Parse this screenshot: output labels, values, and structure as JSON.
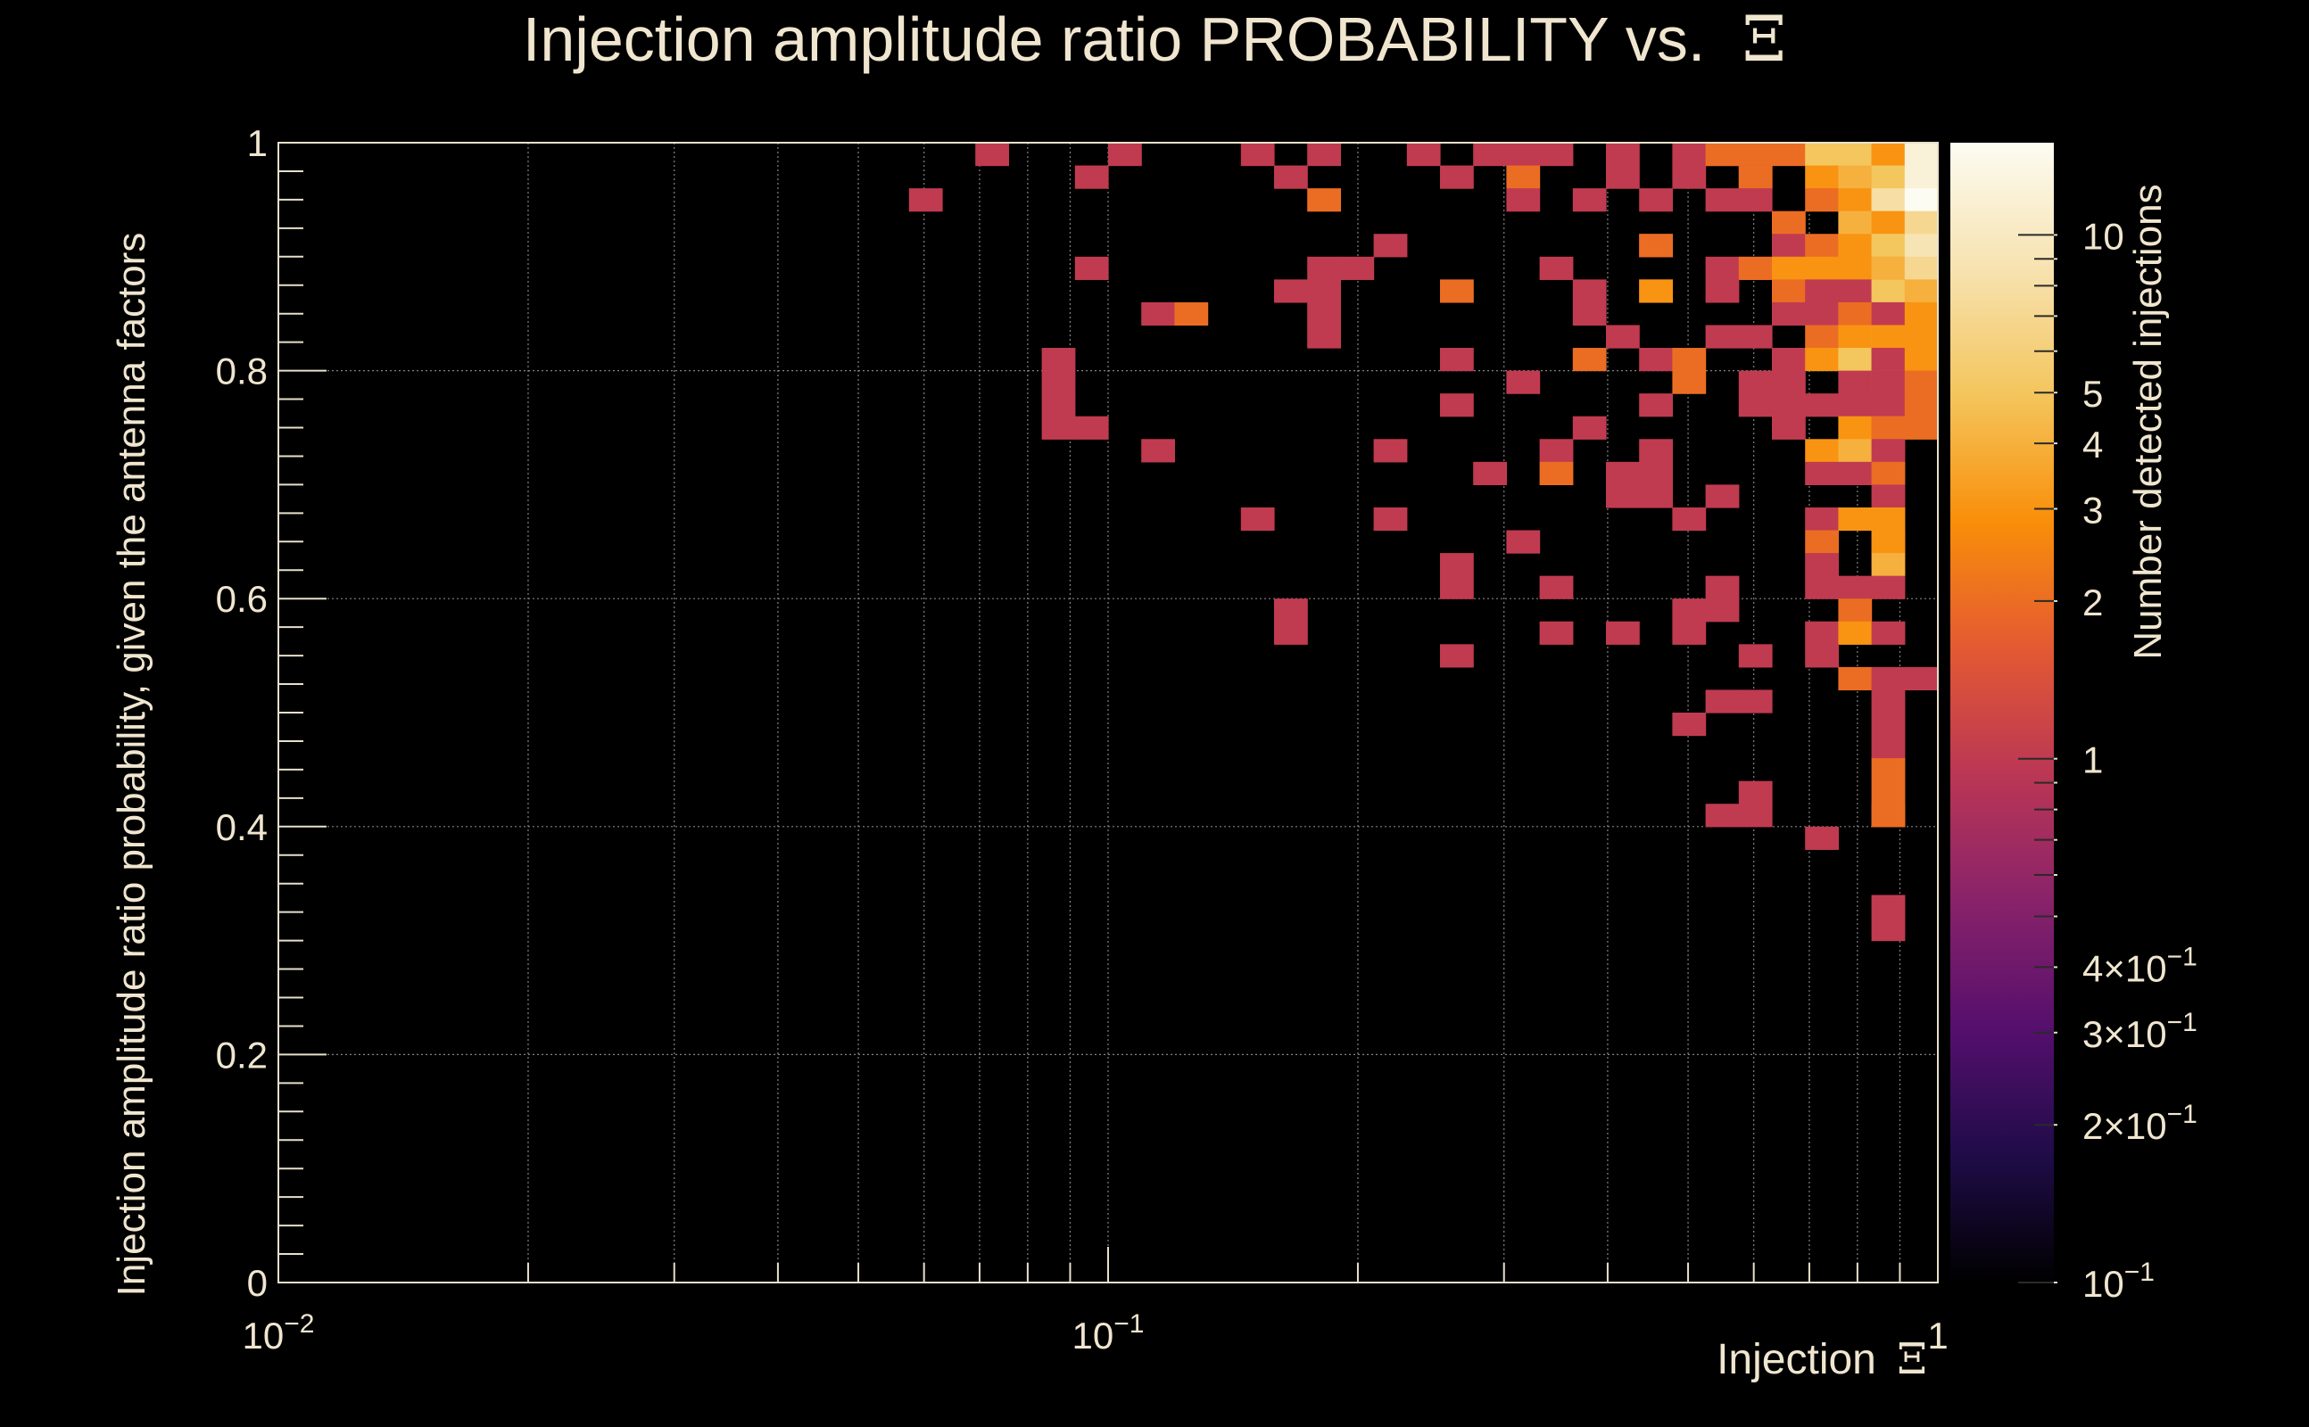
{
  "chart_data": {
    "type": "heatmap",
    "title": "Injection amplitude ratio PROBABILITY vs.",
    "title_symbol": "Ξ",
    "xlabel": "Injection",
    "xlabel_symbol": "Ξ",
    "ylabel": "Injection amplitude ratio probability, given the antenna factors",
    "zlabel": "Number detected injections",
    "x_scale": "log",
    "xlim": [
      0.01,
      1
    ],
    "ylim": [
      0,
      1
    ],
    "z_scale": "log",
    "zlim": [
      0.1,
      15
    ],
    "grid": true,
    "x_ticks": [
      {
        "value": 0.01,
        "base": "10",
        "exp": "−2"
      },
      {
        "value": 0.1,
        "base": "10",
        "exp": "−1"
      },
      {
        "value": 1,
        "base": "1",
        "exp": ""
      }
    ],
    "y_ticks": [
      "0",
      "0.2",
      "0.4",
      "0.6",
      "0.8",
      "1"
    ],
    "z_ticks": [
      {
        "value": 10,
        "label": "10",
        "exp": ""
      },
      {
        "value": 5,
        "label": "5",
        "exp": ""
      },
      {
        "value": 4,
        "label": "4",
        "exp": ""
      },
      {
        "value": 3,
        "label": "3",
        "exp": ""
      },
      {
        "value": 2,
        "label": "2",
        "exp": ""
      },
      {
        "value": 1,
        "label": "1",
        "exp": ""
      },
      {
        "value": 0.4,
        "label": "4×10",
        "exp": "−1"
      },
      {
        "value": 0.3,
        "label": "3×10",
        "exp": "−1"
      },
      {
        "value": 0.2,
        "label": "2×10",
        "exp": "−1"
      },
      {
        "value": 0.1,
        "label": "10",
        "exp": "−1"
      }
    ],
    "colormap": [
      "#000000",
      "#1f0c48",
      "#550f6d",
      "#88226a",
      "#ba3655",
      "#e35933",
      "#f98e09",
      "#f4c55c",
      "#f7e2b0",
      "#fcfcf2"
    ],
    "x_bin_count": 50,
    "y_bin_count": 50,
    "cells": [
      [
        0.105,
        0.99,
        1
      ],
      [
        0.073,
        0.99,
        1
      ],
      [
        0.174,
        0.99,
        1
      ],
      [
        0.148,
        0.99,
        1
      ],
      [
        0.248,
        0.99,
        1
      ],
      [
        0.281,
        0.99,
        1
      ],
      [
        0.325,
        0.99,
        1
      ],
      [
        0.35,
        0.99,
        1
      ],
      [
        0.403,
        0.99,
        1
      ],
      [
        0.501,
        0.99,
        1
      ],
      [
        0.541,
        0.99,
        1
      ],
      [
        0.575,
        0.99,
        2
      ],
      [
        0.63,
        0.99,
        2
      ],
      [
        0.67,
        0.99,
        2
      ],
      [
        0.72,
        0.99,
        5
      ],
      [
        0.78,
        0.99,
        5
      ],
      [
        0.84,
        0.99,
        3
      ],
      [
        0.88,
        0.99,
        3
      ],
      [
        0.95,
        0.99,
        12
      ],
      [
        0.094,
        0.97,
        1
      ],
      [
        0.164,
        0.97,
        1
      ],
      [
        0.262,
        0.97,
        1
      ],
      [
        0.322,
        0.97,
        2
      ],
      [
        0.403,
        0.97,
        1
      ],
      [
        0.502,
        0.97,
        1
      ],
      [
        0.576,
        0.97,
        1
      ],
      [
        0.63,
        0.97,
        2
      ],
      [
        0.706,
        0.97,
        3
      ],
      [
        0.78,
        0.97,
        4
      ],
      [
        0.84,
        0.97,
        3
      ],
      [
        0.892,
        0.97,
        5
      ],
      [
        0.95,
        0.97,
        12
      ],
      [
        0.063,
        0.95,
        1
      ],
      [
        0.174,
        0.95,
        2
      ],
      [
        0.322,
        0.95,
        1
      ],
      [
        0.366,
        0.95,
        1
      ],
      [
        0.441,
        0.95,
        1
      ],
      [
        0.551,
        0.95,
        1
      ],
      [
        0.608,
        0.95,
        1
      ],
      [
        0.706,
        0.95,
        2
      ],
      [
        0.763,
        0.95,
        3
      ],
      [
        0.84,
        0.95,
        6
      ],
      [
        0.892,
        0.95,
        8
      ],
      [
        0.95,
        0.95,
        15
      ],
      [
        0.666,
        0.93,
        2
      ],
      [
        0.763,
        0.93,
        4
      ],
      [
        0.84,
        0.93,
        5
      ],
      [
        0.892,
        0.93,
        3
      ],
      [
        0.95,
        0.93,
        7
      ],
      [
        0.213,
        0.91,
        1
      ],
      [
        0.441,
        0.91,
        1
      ],
      [
        0.472,
        0.91,
        2
      ],
      [
        0.666,
        0.91,
        1
      ],
      [
        0.706,
        0.91,
        2
      ],
      [
        0.763,
        0.91,
        3
      ],
      [
        0.84,
        0.91,
        4
      ],
      [
        0.892,
        0.91,
        5
      ],
      [
        0.95,
        0.91,
        9
      ],
      [
        0.094,
        0.89,
        1
      ],
      [
        0.177,
        0.89,
        1
      ],
      [
        0.195,
        0.89,
        1
      ],
      [
        0.35,
        0.89,
        1
      ],
      [
        0.551,
        0.89,
        1
      ],
      [
        0.588,
        0.89,
        2
      ],
      [
        0.64,
        0.89,
        3
      ],
      [
        0.706,
        0.89,
        3
      ],
      [
        0.763,
        0.89,
        3
      ],
      [
        0.84,
        0.89,
        4
      ],
      [
        0.892,
        0.89,
        4
      ],
      [
        0.95,
        0.89,
        7
      ],
      [
        0.164,
        0.87,
        1
      ],
      [
        0.177,
        0.87,
        1
      ],
      [
        0.262,
        0.87,
        2
      ],
      [
        0.38,
        0.87,
        1
      ],
      [
        0.441,
        0.87,
        1
      ],
      [
        0.472,
        0.87,
        3
      ],
      [
        0.551,
        0.87,
        1
      ],
      [
        0.64,
        0.87,
        2
      ],
      [
        0.706,
        0.87,
        1
      ],
      [
        0.763,
        0.87,
        1
      ],
      [
        0.84,
        0.87,
        2
      ],
      [
        0.892,
        0.87,
        5
      ],
      [
        0.95,
        0.87,
        4
      ],
      [
        0.115,
        0.85,
        1
      ],
      [
        0.125,
        0.85,
        2
      ],
      [
        0.177,
        0.85,
        1
      ],
      [
        0.38,
        0.85,
        1
      ],
      [
        0.64,
        0.85,
        1
      ],
      [
        0.706,
        0.85,
        1
      ],
      [
        0.763,
        0.85,
        2
      ],
      [
        0.84,
        0.85,
        3
      ],
      [
        0.892,
        0.85,
        1
      ],
      [
        0.95,
        0.85,
        3
      ],
      [
        0.177,
        0.83,
        1
      ],
      [
        0.403,
        0.83,
        1
      ],
      [
        0.551,
        0.83,
        1
      ],
      [
        0.588,
        0.83,
        1
      ],
      [
        0.706,
        0.83,
        2
      ],
      [
        0.763,
        0.83,
        3
      ],
      [
        0.84,
        0.83,
        4
      ],
      [
        0.892,
        0.83,
        3
      ],
      [
        0.95,
        0.83,
        3
      ],
      [
        0.086,
        0.81,
        1
      ],
      [
        0.262,
        0.81,
        1
      ],
      [
        0.38,
        0.81,
        2
      ],
      [
        0.441,
        0.81,
        1
      ],
      [
        0.501,
        0.81,
        2
      ],
      [
        0.64,
        0.81,
        1
      ],
      [
        0.706,
        0.81,
        3
      ],
      [
        0.763,
        0.81,
        5
      ],
      [
        0.84,
        0.81,
        2
      ],
      [
        0.892,
        0.81,
        1
      ],
      [
        0.95,
        0.81,
        3
      ],
      [
        0.086,
        0.79,
        1
      ],
      [
        0.306,
        0.79,
        1
      ],
      [
        0.501,
        0.79,
        2
      ],
      [
        0.588,
        0.79,
        1
      ],
      [
        0.64,
        0.79,
        1
      ],
      [
        0.763,
        0.79,
        1
      ],
      [
        0.84,
        0.79,
        2
      ],
      [
        0.892,
        0.79,
        1
      ],
      [
        0.95,
        0.79,
        2
      ],
      [
        0.086,
        0.77,
        1
      ],
      [
        0.262,
        0.77,
        1
      ],
      [
        0.441,
        0.77,
        1
      ],
      [
        0.588,
        0.77,
        1
      ],
      [
        0.64,
        0.77,
        1
      ],
      [
        0.706,
        0.77,
        1
      ],
      [
        0.763,
        0.77,
        1
      ],
      [
        0.84,
        0.77,
        1
      ],
      [
        0.892,
        0.77,
        1
      ],
      [
        0.95,
        0.77,
        2
      ],
      [
        0.086,
        0.75,
        1
      ],
      [
        0.094,
        0.75,
        1
      ],
      [
        0.366,
        0.75,
        1
      ],
      [
        0.64,
        0.75,
        1
      ],
      [
        0.763,
        0.75,
        3
      ],
      [
        0.84,
        0.75,
        2
      ],
      [
        0.892,
        0.75,
        2
      ],
      [
        0.95,
        0.75,
        2
      ],
      [
        0.115,
        0.73,
        1
      ],
      [
        0.213,
        0.73,
        1
      ],
      [
        0.35,
        0.73,
        1
      ],
      [
        0.441,
        0.73,
        1
      ],
      [
        0.706,
        0.73,
        3
      ],
      [
        0.763,
        0.73,
        4
      ],
      [
        0.84,
        0.73,
        1
      ],
      [
        0.29,
        0.71,
        1
      ],
      [
        0.35,
        0.71,
        2
      ],
      [
        0.403,
        0.71,
        1
      ],
      [
        0.472,
        0.71,
        1
      ],
      [
        0.706,
        0.71,
        1
      ],
      [
        0.763,
        0.71,
        1
      ],
      [
        0.84,
        0.71,
        2
      ],
      [
        0.403,
        0.69,
        1
      ],
      [
        0.441,
        0.69,
        1
      ],
      [
        0.551,
        0.69,
        1
      ],
      [
        0.84,
        0.69,
        1
      ],
      [
        0.148,
        0.67,
        1
      ],
      [
        0.213,
        0.67,
        1
      ],
      [
        0.501,
        0.67,
        1
      ],
      [
        0.706,
        0.67,
        1
      ],
      [
        0.763,
        0.67,
        3
      ],
      [
        0.84,
        0.67,
        3
      ],
      [
        0.322,
        0.65,
        1
      ],
      [
        0.706,
        0.65,
        2
      ],
      [
        0.84,
        0.65,
        1
      ],
      [
        0.892,
        0.65,
        3
      ],
      [
        0.262,
        0.63,
        1
      ],
      [
        0.706,
        0.63,
        1
      ],
      [
        0.84,
        0.63,
        4
      ],
      [
        0.262,
        0.61,
        1
      ],
      [
        0.35,
        0.61,
        1
      ],
      [
        0.551,
        0.61,
        1
      ],
      [
        0.706,
        0.61,
        1
      ],
      [
        0.763,
        0.61,
        1
      ],
      [
        0.84,
        0.61,
        1
      ],
      [
        0.164,
        0.59,
        1
      ],
      [
        0.501,
        0.59,
        1
      ],
      [
        0.551,
        0.59,
        1
      ],
      [
        0.763,
        0.59,
        2
      ],
      [
        0.164,
        0.57,
        1
      ],
      [
        0.35,
        0.57,
        1
      ],
      [
        0.403,
        0.57,
        1
      ],
      [
        0.501,
        0.57,
        1
      ],
      [
        0.706,
        0.57,
        1
      ],
      [
        0.763,
        0.57,
        3
      ],
      [
        0.84,
        0.57,
        1
      ],
      [
        0.262,
        0.55,
        1
      ],
      [
        0.588,
        0.55,
        1
      ],
      [
        0.706,
        0.55,
        1
      ],
      [
        0.763,
        0.53,
        2
      ],
      [
        0.84,
        0.53,
        1
      ],
      [
        0.95,
        0.53,
        1
      ],
      [
        0.551,
        0.51,
        1
      ],
      [
        0.588,
        0.51,
        1
      ],
      [
        0.84,
        0.51,
        1
      ],
      [
        0.501,
        0.49,
        1
      ],
      [
        0.84,
        0.49,
        1
      ],
      [
        0.892,
        0.47,
        1
      ],
      [
        0.84,
        0.45,
        2
      ],
      [
        0.588,
        0.43,
        1
      ],
      [
        0.84,
        0.43,
        2
      ],
      [
        0.551,
        0.41,
        1
      ],
      [
        0.588,
        0.41,
        1
      ],
      [
        0.84,
        0.41,
        2
      ],
      [
        0.892,
        0.41,
        2
      ],
      [
        0.706,
        0.39,
        1
      ],
      [
        0.84,
        0.33,
        1
      ],
      [
        0.84,
        0.31,
        1
      ]
    ]
  }
}
